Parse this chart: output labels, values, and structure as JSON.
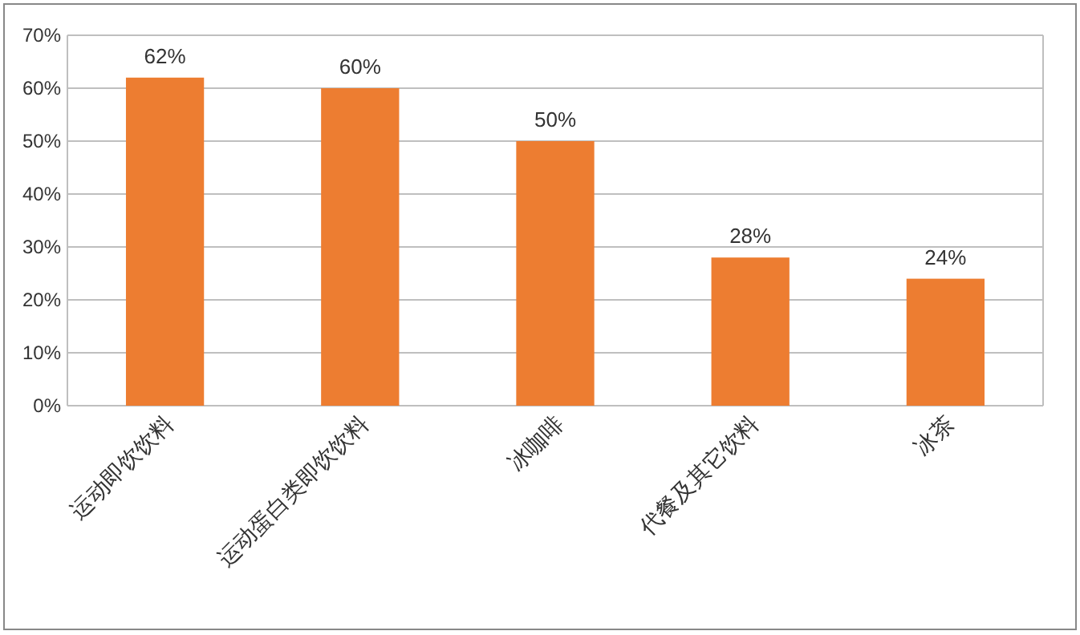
{
  "chart_data": {
    "type": "bar",
    "categories": [
      "运动即饮饮料",
      "运动蛋白类即饮饮料",
      "冰咖啡",
      "代餐及其它饮料",
      "冰茶"
    ],
    "values": [
      62,
      60,
      50,
      28,
      24
    ],
    "value_labels": [
      "62%",
      "60%",
      "50%",
      "28%",
      "24%"
    ],
    "color": "#ed7d31",
    "ylim": [
      0,
      70
    ],
    "yticks": [
      {
        "value": 0,
        "label": "0%"
      },
      {
        "value": 10,
        "label": "10%"
      },
      {
        "value": 20,
        "label": "20%"
      },
      {
        "value": 30,
        "label": "30%"
      },
      {
        "value": 40,
        "label": "40%"
      },
      {
        "value": 50,
        "label": "50%"
      },
      {
        "value": 60,
        "label": "60%"
      },
      {
        "value": 70,
        "label": "70%"
      }
    ],
    "grid": "y"
  }
}
